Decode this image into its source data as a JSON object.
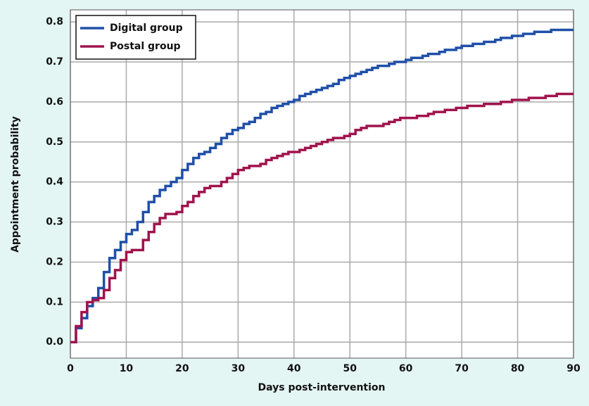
{
  "chart_data": {
    "type": "step",
    "x_label": "Days post-intervention",
    "y_label": "Appointment probability",
    "x": [
      0,
      1,
      2,
      3,
      4,
      5,
      6,
      7,
      8,
      9,
      10,
      11,
      12,
      13,
      14,
      15,
      16,
      17,
      18,
      19,
      20,
      21,
      22,
      23,
      24,
      25,
      26,
      27,
      28,
      29,
      30,
      31,
      32,
      33,
      34,
      35,
      36,
      37,
      38,
      39,
      40,
      41,
      42,
      43,
      44,
      45,
      46,
      47,
      48,
      49,
      50,
      51,
      52,
      53,
      54,
      55,
      56,
      57,
      58,
      59,
      60,
      61,
      62,
      63,
      64,
      65,
      66,
      67,
      68,
      69,
      70,
      71,
      72,
      73,
      74,
      75,
      76,
      77,
      78,
      79,
      80,
      81,
      82,
      83,
      84,
      85,
      86,
      87,
      88,
      89,
      90
    ],
    "series": [
      {
        "name": "Digital group",
        "color": "#1f4fa8",
        "values": [
          0,
          0.035,
          0.06,
          0.09,
          0.11,
          0.135,
          0.175,
          0.21,
          0.23,
          0.25,
          0.27,
          0.28,
          0.3,
          0.325,
          0.35,
          0.365,
          0.38,
          0.39,
          0.4,
          0.41,
          0.43,
          0.445,
          0.46,
          0.47,
          0.475,
          0.485,
          0.495,
          0.51,
          0.52,
          0.53,
          0.535,
          0.545,
          0.55,
          0.56,
          0.57,
          0.575,
          0.585,
          0.59,
          0.595,
          0.6,
          0.605,
          0.615,
          0.62,
          0.625,
          0.63,
          0.635,
          0.64,
          0.645,
          0.655,
          0.66,
          0.665,
          0.67,
          0.675,
          0.68,
          0.685,
          0.69,
          0.69,
          0.695,
          0.7,
          0.7,
          0.705,
          0.71,
          0.71,
          0.715,
          0.72,
          0.72,
          0.725,
          0.73,
          0.73,
          0.735,
          0.74,
          0.74,
          0.745,
          0.745,
          0.75,
          0.75,
          0.755,
          0.76,
          0.76,
          0.765,
          0.765,
          0.77,
          0.77,
          0.775,
          0.775,
          0.775,
          0.78,
          0.78,
          0.78,
          0.78,
          0.78
        ]
      },
      {
        "name": "Postal group",
        "color": "#a0134d",
        "values": [
          0,
          0.04,
          0.075,
          0.1,
          0.105,
          0.11,
          0.13,
          0.16,
          0.18,
          0.205,
          0.225,
          0.23,
          0.23,
          0.255,
          0.275,
          0.295,
          0.31,
          0.32,
          0.32,
          0.325,
          0.34,
          0.35,
          0.365,
          0.375,
          0.385,
          0.39,
          0.39,
          0.4,
          0.41,
          0.42,
          0.43,
          0.435,
          0.44,
          0.44,
          0.445,
          0.455,
          0.46,
          0.465,
          0.47,
          0.475,
          0.475,
          0.48,
          0.485,
          0.49,
          0.495,
          0.5,
          0.505,
          0.51,
          0.51,
          0.515,
          0.52,
          0.53,
          0.535,
          0.54,
          0.54,
          0.54,
          0.545,
          0.55,
          0.555,
          0.56,
          0.56,
          0.56,
          0.565,
          0.565,
          0.57,
          0.575,
          0.575,
          0.58,
          0.58,
          0.585,
          0.585,
          0.59,
          0.59,
          0.59,
          0.595,
          0.595,
          0.595,
          0.6,
          0.6,
          0.605,
          0.605,
          0.605,
          0.61,
          0.61,
          0.61,
          0.615,
          0.615,
          0.62,
          0.62,
          0.62,
          0.62
        ]
      }
    ],
    "xlim": [
      0,
      90
    ],
    "xticks": [
      0,
      10,
      20,
      30,
      40,
      50,
      60,
      70,
      80,
      90
    ],
    "ylim": [
      -0.04,
      0.83
    ],
    "yticks": [
      {
        "value": 0,
        "label": "0.0"
      },
      {
        "value": 0.1,
        "label": "0.1"
      },
      {
        "value": 0.2,
        "label": "0.2"
      },
      {
        "value": 0.3,
        "label": "0.3"
      },
      {
        "value": 0.4,
        "label": "0.4"
      },
      {
        "value": 0.5,
        "label": "0.5"
      },
      {
        "value": 0.6,
        "label": "0.6"
      },
      {
        "value": 0.7,
        "label": "0.7"
      },
      {
        "value": 0.8,
        "label": "0.8"
      }
    ],
    "grid": true,
    "legend": "top-left"
  }
}
